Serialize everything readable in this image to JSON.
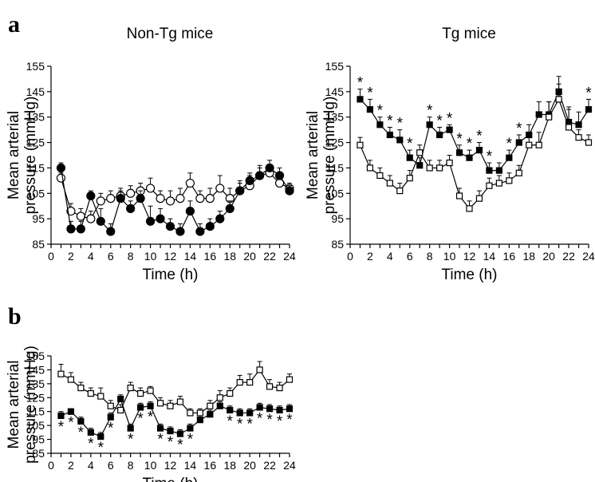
{
  "colors": {
    "ink": "#000000",
    "open_fill": "#ffffff",
    "filled": "#000000"
  },
  "figure": {
    "panel_labels": [
      "a",
      "b"
    ]
  },
  "chart_data": [
    {
      "panel": "a",
      "type": "line",
      "title": "Non-Tg mice",
      "xlabel": "Time (h)",
      "ylabel_lines": [
        "Mean arterial",
        "pressure (mmHg)"
      ],
      "xlim": [
        0,
        24
      ],
      "ylim": [
        85,
        155
      ],
      "xticks": [
        0,
        2,
        4,
        6,
        8,
        10,
        12,
        14,
        16,
        18,
        20,
        22,
        24
      ],
      "yticks": [
        85,
        95,
        105,
        115,
        125,
        135,
        145,
        155
      ],
      "grid": false,
      "x": [
        1,
        2,
        3,
        4,
        5,
        6,
        7,
        8,
        9,
        10,
        11,
        12,
        13,
        14,
        15,
        16,
        17,
        18,
        19,
        20,
        21,
        22,
        23,
        24
      ],
      "series": [
        {
          "marker": "circle-open",
          "values": [
            111,
            98,
            96,
            95,
            102,
            103,
            104,
            105,
            106,
            107,
            103,
            102,
            103,
            109,
            103,
            103,
            107,
            103,
            106,
            108,
            112,
            113,
            109,
            107
          ],
          "err": [
            2,
            3,
            3,
            3,
            3,
            3,
            3,
            3,
            3,
            4,
            3,
            4,
            4,
            4,
            3,
            4,
            5,
            4,
            4,
            4,
            4,
            3,
            3,
            2
          ]
        },
        {
          "marker": "circle-filled",
          "values": [
            115,
            91,
            91,
            104,
            94,
            90,
            103,
            99,
            103,
            94,
            95,
            92,
            90,
            98,
            90,
            92,
            95,
            99,
            106,
            110,
            112,
            115,
            112,
            106
          ],
          "err": [
            2,
            3,
            3,
            2,
            5,
            3,
            3,
            3,
            3,
            6,
            4,
            3,
            3,
            4,
            3,
            3,
            3,
            3,
            3,
            3,
            3,
            3,
            3,
            2
          ]
        }
      ]
    },
    {
      "panel": "a",
      "type": "line",
      "title": "Tg mice",
      "xlabel": "Time (h)",
      "ylabel_lines": [
        "Mean arterial",
        "pressure (mmHg)"
      ],
      "xlim": [
        0,
        24
      ],
      "ylim": [
        85,
        155
      ],
      "xticks": [
        0,
        2,
        4,
        6,
        8,
        10,
        12,
        14,
        16,
        18,
        20,
        22,
        24
      ],
      "yticks": [
        85,
        95,
        105,
        115,
        125,
        135,
        145,
        155
      ],
      "grid": false,
      "x": [
        1,
        2,
        3,
        4,
        5,
        6,
        7,
        8,
        9,
        10,
        11,
        12,
        13,
        14,
        15,
        16,
        17,
        18,
        19,
        20,
        21,
        22,
        23,
        24
      ],
      "series": [
        {
          "marker": "square-filled",
          "values": [
            142,
            138,
            132,
            128,
            126,
            119,
            116,
            132,
            128,
            130,
            121,
            119,
            122,
            114,
            114,
            119,
            125,
            128,
            136,
            136,
            145,
            133,
            132,
            138
          ],
          "err": [
            4,
            4,
            3,
            3,
            4,
            3,
            3,
            3,
            3,
            2,
            3,
            3,
            3,
            3,
            3,
            3,
            3,
            4,
            5,
            5,
            6,
            6,
            5,
            4
          ],
          "annotations": [
            1,
            2,
            3,
            4,
            5,
            6,
            8,
            9,
            10,
            11,
            12,
            13,
            14,
            16,
            17,
            24
          ]
        },
        {
          "marker": "square-open",
          "values": [
            124,
            115,
            112,
            109,
            106,
            111,
            121,
            115,
            115,
            117,
            104,
            99,
            103,
            108,
            109,
            110,
            113,
            124,
            124,
            135,
            142,
            131,
            127,
            125
          ],
          "err": [
            3,
            3,
            3,
            3,
            3,
            3,
            3,
            3,
            3,
            3,
            3,
            3,
            3,
            3,
            3,
            3,
            3,
            3,
            5,
            6,
            6,
            7,
            3,
            3
          ]
        }
      ]
    },
    {
      "panel": "b",
      "type": "line",
      "title": "",
      "xlabel": "Time (h)",
      "ylabel_lines": [
        "Mean arterial",
        "pressure (mmHg)"
      ],
      "xlim": [
        0,
        24
      ],
      "ylim": [
        85,
        155
      ],
      "xticks": [
        0,
        2,
        4,
        6,
        8,
        10,
        12,
        14,
        16,
        18,
        20,
        22,
        24
      ],
      "yticks": [
        85,
        95,
        105,
        115,
        125,
        135,
        145,
        155
      ],
      "grid": false,
      "x": [
        1,
        2,
        3,
        4,
        5,
        6,
        7,
        8,
        9,
        10,
        11,
        12,
        13,
        14,
        15,
        16,
        17,
        18,
        19,
        20,
        21,
        22,
        23,
        24
      ],
      "series": [
        {
          "marker": "square-open",
          "values": [
            142,
            138,
            132,
            128,
            126,
            119,
            116,
            132,
            128,
            130,
            121,
            119,
            122,
            114,
            114,
            119,
            125,
            128,
            136,
            136,
            145,
            133,
            132,
            138
          ],
          "err": [
            7,
            5,
            4,
            4,
            6,
            4,
            4,
            4,
            4,
            3,
            4,
            4,
            4,
            3,
            3,
            4,
            5,
            4,
            5,
            6,
            6,
            5,
            4,
            4
          ]
        },
        {
          "marker": "square-filled",
          "values": [
            112,
            115,
            108,
            100,
            97,
            111,
            124,
            103,
            118,
            119,
            103,
            101,
            99,
            103,
            109,
            113,
            119,
            116,
            114,
            114,
            118,
            117,
            116,
            117
          ],
          "err": [
            3,
            2,
            3,
            3,
            3,
            3,
            3,
            3,
            3,
            3,
            3,
            3,
            3,
            3,
            3,
            3,
            3,
            3,
            3,
            3,
            3,
            3,
            3,
            3
          ],
          "annotations": [
            1,
            2,
            3,
            4,
            5,
            6,
            8,
            9,
            10,
            11,
            12,
            13,
            14,
            18,
            19,
            20,
            21,
            22,
            23,
            24
          ]
        }
      ]
    }
  ]
}
